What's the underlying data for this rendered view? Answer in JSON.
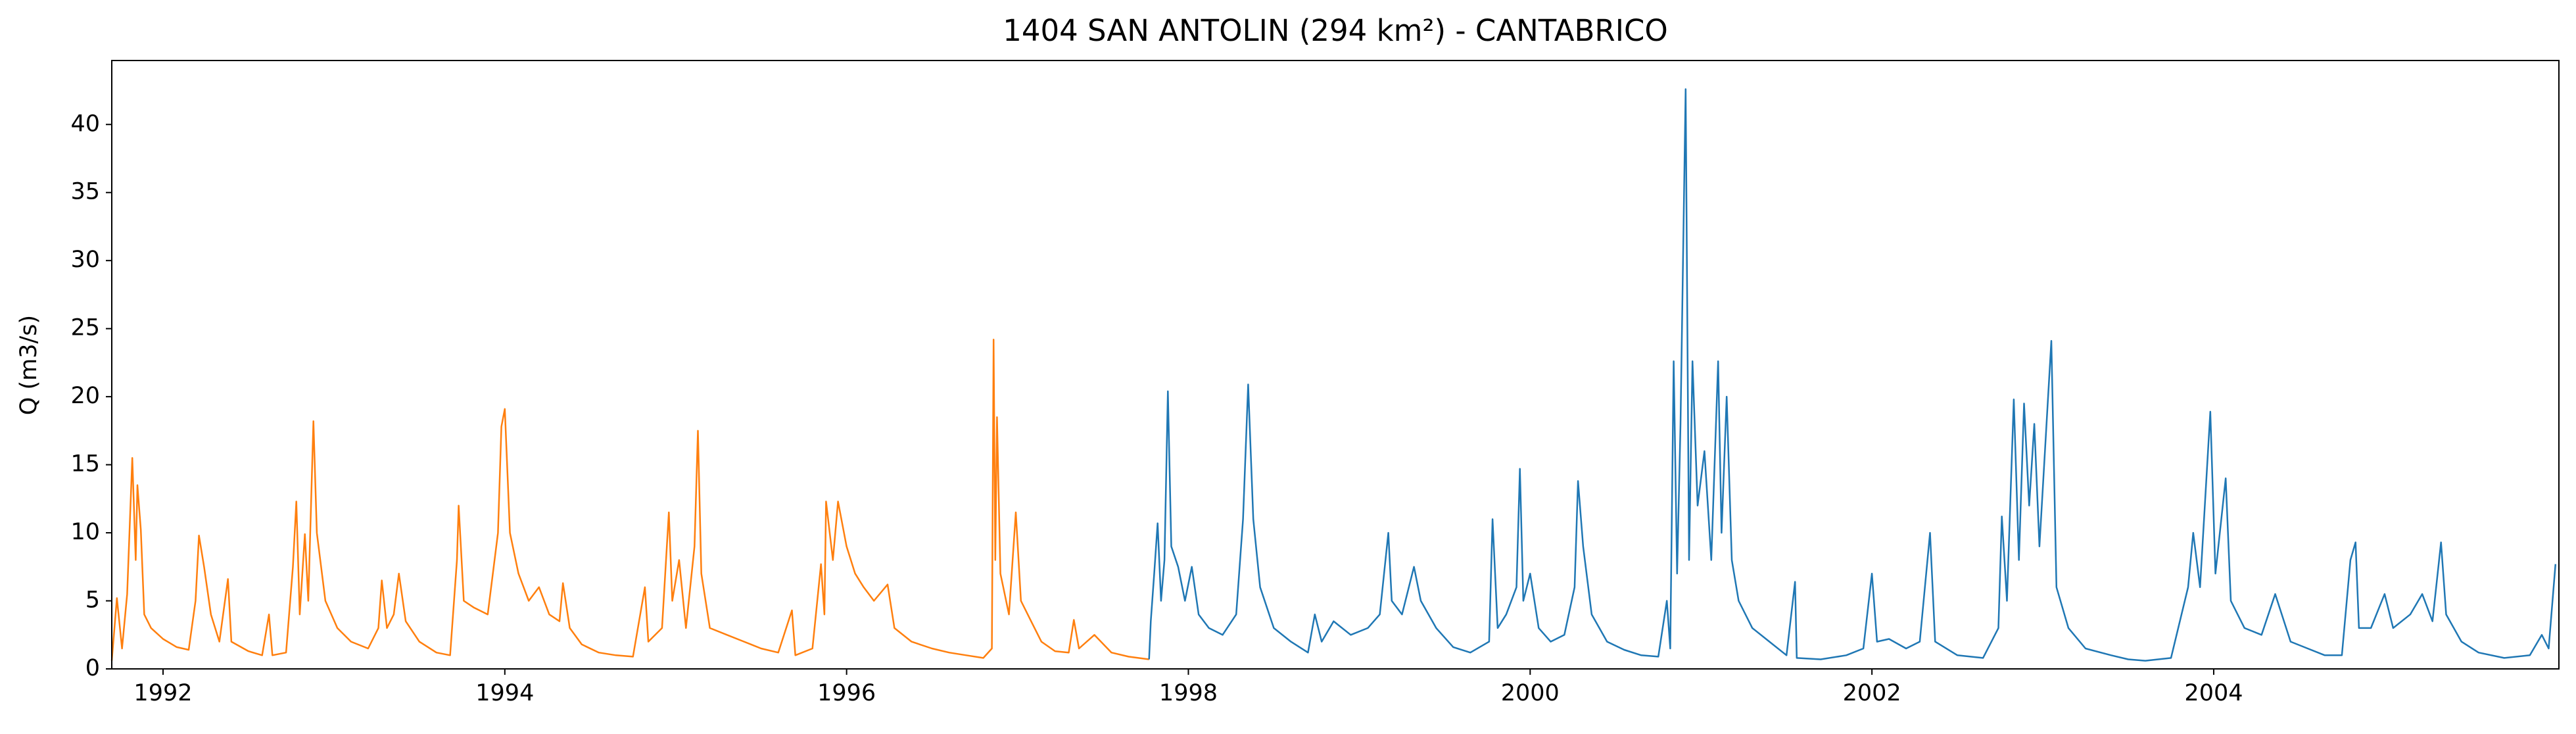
{
  "chart_data": {
    "type": "line",
    "title": "1404 SAN ANTOLIN (294 km²) - CANTABRICO",
    "y_label": "Q (m3/s)",
    "xlim": [
      1991.7,
      2006.02
    ],
    "xticks": [
      1992,
      1994,
      1996,
      1998,
      2000,
      2002,
      2004
    ],
    "ylim": [
      0,
      44.7
    ],
    "yticks": [
      0,
      5,
      10,
      15,
      20,
      25,
      30,
      35,
      40
    ],
    "grid": false,
    "series": [
      {
        "color": "#ff7f0e",
        "x": [
          1991.7,
          1991.73,
          1991.76,
          1991.79,
          1991.82,
          1991.84,
          1991.85,
          1991.87,
          1991.89,
          1991.93,
          1992.0,
          1992.08,
          1992.15,
          1992.19,
          1992.21,
          1992.24,
          1992.28,
          1992.33,
          1992.38,
          1992.4,
          1992.5,
          1992.58,
          1992.62,
          1992.64,
          1992.72,
          1992.76,
          1992.78,
          1992.8,
          1992.83,
          1992.85,
          1992.88,
          1992.9,
          1992.95,
          1993.02,
          1993.1,
          1993.2,
          1993.26,
          1993.28,
          1993.31,
          1993.35,
          1993.38,
          1993.42,
          1993.5,
          1993.6,
          1993.68,
          1993.72,
          1993.73,
          1993.76,
          1993.82,
          1993.9,
          1993.96,
          1993.98,
          1994.0,
          1994.03,
          1994.08,
          1994.14,
          1994.2,
          1994.26,
          1994.32,
          1994.34,
          1994.38,
          1994.45,
          1994.55,
          1994.65,
          1994.75,
          1994.82,
          1994.84,
          1994.92,
          1994.96,
          1994.98,
          1995.02,
          1995.06,
          1995.11,
          1995.13,
          1995.15,
          1995.2,
          1995.3,
          1995.4,
          1995.5,
          1995.6,
          1995.68,
          1995.7,
          1995.8,
          1995.85,
          1995.87,
          1995.88,
          1995.92,
          1995.95,
          1996.0,
          1996.05,
          1996.1,
          1996.16,
          1996.24,
          1996.28,
          1996.38,
          1996.5,
          1996.6,
          1996.7,
          1996.8,
          1996.85,
          1996.86,
          1996.87,
          1996.88,
          1996.9,
          1996.95,
          1996.99,
          1997.02,
          1997.08,
          1997.14,
          1997.22,
          1997.3,
          1997.33,
          1997.36,
          1997.45,
          1997.55,
          1997.65,
          1997.77
        ],
        "values": [
          0.6,
          5.2,
          1.5,
          5.5,
          15.5,
          8,
          13.5,
          10.2,
          4,
          3,
          2.2,
          1.6,
          1.4,
          5,
          9.8,
          7.5,
          4,
          2,
          6.6,
          2,
          1.3,
          1.0,
          4,
          1,
          1.2,
          7.5,
          12.3,
          4,
          9.9,
          5,
          18.2,
          10,
          5,
          3,
          2,
          1.5,
          3,
          6.5,
          3,
          4,
          7,
          3.5,
          2,
          1.2,
          1,
          8,
          12,
          5,
          4.5,
          4,
          10,
          17.8,
          19.1,
          10,
          7,
          5,
          6,
          4,
          3.5,
          6.3,
          3,
          1.8,
          1.2,
          1,
          0.9,
          6,
          2,
          3,
          11.5,
          5,
          8,
          3,
          9,
          17.5,
          7,
          3,
          2.5,
          2,
          1.5,
          1.2,
          4.3,
          1,
          1.5,
          7.7,
          4,
          12.3,
          8,
          12.3,
          9,
          7,
          6,
          5,
          6.2,
          3,
          2,
          1.5,
          1.2,
          1,
          0.8,
          1.5,
          24.2,
          8,
          18.5,
          7,
          4,
          11.5,
          5,
          3.5,
          2,
          1.3,
          1.2,
          3.6,
          1.5,
          2.5,
          1.2,
          0.9,
          0.7
        ]
      },
      {
        "color": "#1f77b4",
        "x": [
          1997.77,
          1997.78,
          1997.8,
          1997.82,
          1997.84,
          1997.86,
          1997.88,
          1997.9,
          1997.94,
          1997.98,
          1998.02,
          1998.06,
          1998.12,
          1998.2,
          1998.28,
          1998.32,
          1998.35,
          1998.38,
          1998.42,
          1998.5,
          1998.6,
          1998.7,
          1998.74,
          1998.78,
          1998.85,
          1998.95,
          1999.05,
          1999.12,
          1999.17,
          1999.19,
          1999.25,
          1999.32,
          1999.36,
          1999.45,
          1999.55,
          1999.65,
          1999.76,
          1999.78,
          1999.81,
          1999.86,
          1999.92,
          1999.94,
          1999.96,
          2000.0,
          2000.05,
          2000.12,
          2000.2,
          2000.26,
          2000.28,
          2000.31,
          2000.36,
          2000.45,
          2000.55,
          2000.65,
          2000.75,
          2000.8,
          2000.82,
          2000.84,
          2000.86,
          2000.88,
          2000.91,
          2000.93,
          2000.95,
          2000.98,
          2001.02,
          2001.06,
          2001.1,
          2001.12,
          2001.15,
          2001.18,
          2001.22,
          2001.3,
          2001.4,
          2001.5,
          2001.55,
          2001.56,
          2001.7,
          2001.85,
          2001.95,
          2002.0,
          2002.03,
          2002.1,
          2002.2,
          2002.28,
          2002.34,
          2002.37,
          2002.5,
          2002.65,
          2002.74,
          2002.76,
          2002.79,
          2002.83,
          2002.86,
          2002.89,
          2002.92,
          2002.95,
          2002.98,
          2003.05,
          2003.08,
          2003.15,
          2003.25,
          2003.4,
          2003.5,
          2003.6,
          2003.75,
          2003.85,
          2003.88,
          2003.92,
          2003.98,
          2004.01,
          2004.07,
          2004.1,
          2004.18,
          2004.28,
          2004.36,
          2004.45,
          2004.55,
          2004.65,
          2004.75,
          2004.8,
          2004.83,
          2004.85,
          2004.92,
          2005.0,
          2005.05,
          2005.15,
          2005.22,
          2005.28,
          2005.33,
          2005.36,
          2005.45,
          2005.55,
          2005.7,
          2005.85,
          2005.92,
          2005.96,
          2006.0
        ],
        "values": [
          0.7,
          3.5,
          7,
          10.7,
          5,
          8,
          20.4,
          9,
          7.5,
          5,
          7.5,
          4,
          3,
          2.5,
          4,
          11,
          20.9,
          11,
          6,
          3,
          2,
          1.2,
          4,
          2,
          3.5,
          2.5,
          3,
          4,
          10,
          5,
          4,
          7.5,
          5,
          3,
          1.6,
          1.2,
          2,
          11,
          3,
          4,
          6,
          14.7,
          5,
          7,
          3,
          2,
          2.5,
          6,
          13.8,
          9,
          4,
          2,
          1.4,
          1,
          0.9,
          5,
          1.5,
          22.6,
          7,
          18,
          42.6,
          8,
          22.6,
          12,
          16,
          8,
          22.6,
          10,
          20,
          8,
          5,
          3,
          2,
          1,
          6.4,
          0.8,
          0.7,
          1,
          1.5,
          7,
          2,
          2.2,
          1.5,
          2,
          10,
          2,
          1,
          0.8,
          3,
          11.2,
          5,
          19.8,
          8,
          19.5,
          12,
          18,
          9,
          24.1,
          6,
          3,
          1.5,
          1,
          0.7,
          0.6,
          0.8,
          6,
          10,
          6,
          18.9,
          7,
          14,
          5,
          3,
          2.5,
          5.5,
          2,
          1.5,
          1,
          1,
          8,
          9.3,
          3,
          3,
          5.5,
          3,
          4,
          5.5,
          3.5,
          9.3,
          4,
          2,
          1.2,
          0.8,
          1,
          2.5,
          1.5,
          7.7
        ]
      }
    ]
  }
}
